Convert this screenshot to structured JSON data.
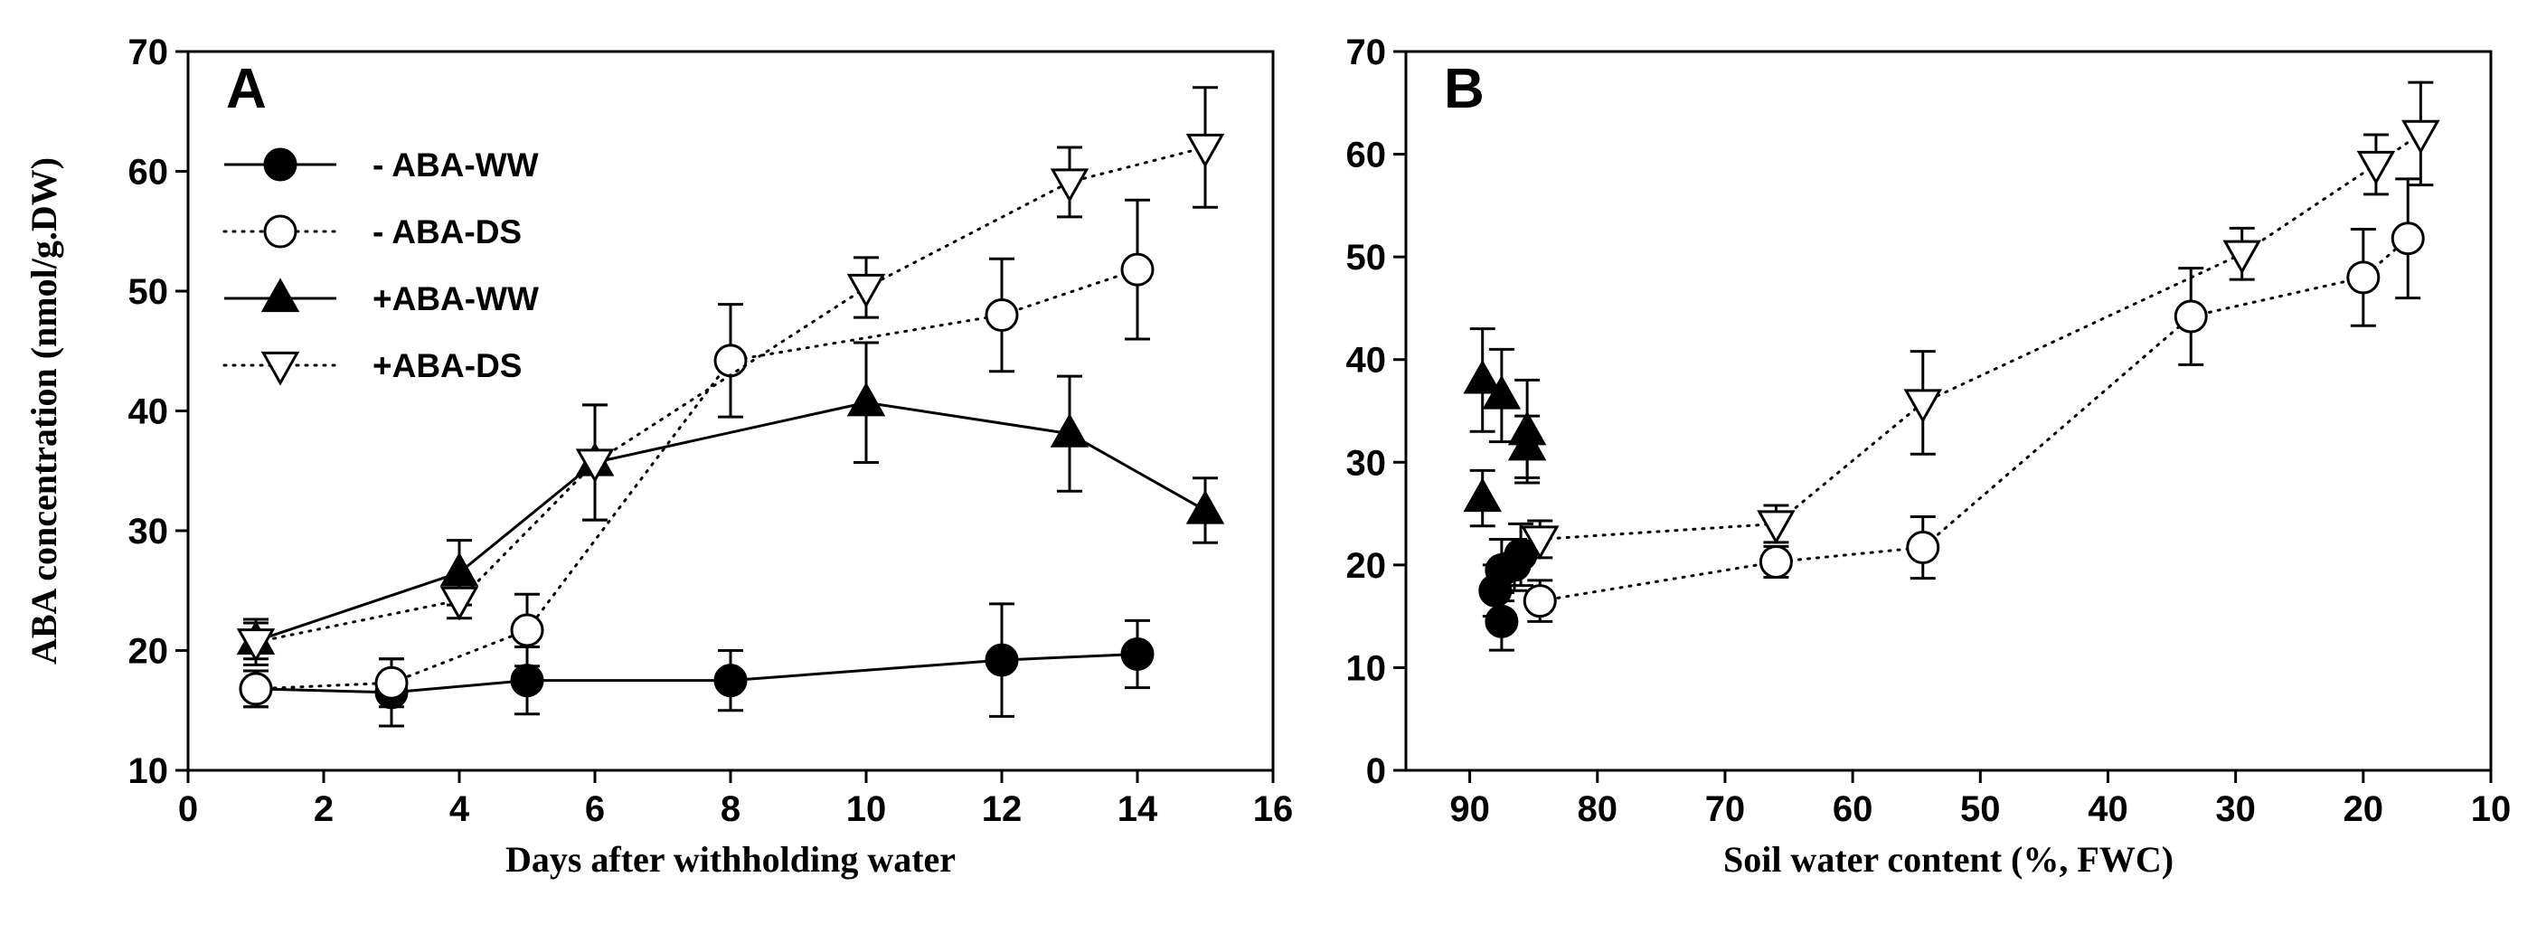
{
  "chart_data": [
    {
      "type": "line",
      "panel": "A",
      "xlabel": "Days after withholding water",
      "ylabel": "ABA concentration (nmol/g.DW)",
      "xlim": [
        0,
        16
      ],
      "ylim": [
        10,
        70
      ],
      "xticks": [
        0,
        2,
        4,
        6,
        8,
        10,
        12,
        14,
        16
      ],
      "yticks": [
        10,
        20,
        30,
        40,
        50,
        60,
        70
      ],
      "legend_position": "top-left",
      "series": [
        {
          "name": "- ABA-WW",
          "marker": "filled-circle",
          "line": "solid",
          "points": [
            {
              "x": 1,
              "y": 16.8,
              "err": 1.5
            },
            {
              "x": 3,
              "y": 16.5,
              "err": 2.8
            },
            {
              "x": 5,
              "y": 17.5,
              "err": 2.8
            },
            {
              "x": 8,
              "y": 17.5,
              "err": 2.5
            },
            {
              "x": 12,
              "y": 19.2,
              "err": 4.7
            },
            {
              "x": 14,
              "y": 19.7,
              "err": 2.8
            }
          ]
        },
        {
          "name": "- ABA-DS",
          "marker": "open-circle",
          "line": "dotted",
          "points": [
            {
              "x": 1,
              "y": 16.8,
              "err": 1.5
            },
            {
              "x": 3,
              "y": 17.3,
              "err": 2.0
            },
            {
              "x": 5,
              "y": 21.7,
              "err": 3.0
            },
            {
              "x": 8,
              "y": 44.2,
              "err": 4.7
            },
            {
              "x": 12,
              "y": 48.0,
              "err": 4.7
            },
            {
              "x": 14,
              "y": 51.8,
              "err": 5.8
            }
          ]
        },
        {
          "name": "+ABA-WW",
          "marker": "filled-triangle-up",
          "line": "solid",
          "points": [
            {
              "x": 1,
              "y": 20.8,
              "err": 1.5
            },
            {
              "x": 4,
              "y": 26.5,
              "err": 2.7
            },
            {
              "x": 6,
              "y": 35.7,
              "err": 4.8
            },
            {
              "x": 10,
              "y": 40.7,
              "err": 5.0
            },
            {
              "x": 13,
              "y": 38.1,
              "err": 4.8
            },
            {
              "x": 15,
              "y": 31.7,
              "err": 2.7
            }
          ]
        },
        {
          "name": "+ABA-DS",
          "marker": "open-triangle-down",
          "line": "dotted",
          "points": [
            {
              "x": 1,
              "y": 20.7,
              "err": 1.9
            },
            {
              "x": 4,
              "y": 24.2,
              "err": 1.5
            },
            {
              "x": 6,
              "y": 35.7,
              "err": 4.8
            },
            {
              "x": 10,
              "y": 50.3,
              "err": 2.5
            },
            {
              "x": 13,
              "y": 59.1,
              "err": 2.9
            },
            {
              "x": 15,
              "y": 62.0,
              "err": 5.0
            }
          ]
        }
      ]
    },
    {
      "type": "scatter",
      "panel": "B",
      "xlabel": "Soil water content (%, FWC)",
      "ylabel": "",
      "xlim": [
        95,
        10
      ],
      "ylim": [
        0,
        70
      ],
      "xticks": [
        90,
        80,
        70,
        60,
        50,
        40,
        30,
        20,
        10
      ],
      "yticks": [
        0,
        10,
        20,
        30,
        40,
        50,
        60,
        70
      ],
      "series": [
        {
          "name": "- ABA-WW",
          "marker": "filled-circle",
          "line": "none",
          "points": [
            {
              "x": 88,
              "y": 17.5,
              "err": 2.5
            },
            {
              "x": 87.5,
              "y": 14.5,
              "err": 2.8
            },
            {
              "x": 87.5,
              "y": 19.5,
              "err": 3.0
            },
            {
              "x": 86.5,
              "y": 20.0,
              "err": 2.5
            },
            {
              "x": 86,
              "y": 21.0,
              "err": 3.0
            }
          ]
        },
        {
          "name": "- ABA-DS",
          "marker": "open-circle",
          "line": "dotted",
          "points": [
            {
              "x": 84.5,
              "y": 16.5,
              "err": 2.0
            },
            {
              "x": 66,
              "y": 20.3,
              "err": 1.5
            },
            {
              "x": 54.5,
              "y": 21.7,
              "err": 3.0
            },
            {
              "x": 33.5,
              "y": 44.2,
              "err": 4.7
            },
            {
              "x": 20,
              "y": 48.0,
              "err": 4.7
            },
            {
              "x": 16.5,
              "y": 51.8,
              "err": 5.8
            }
          ]
        },
        {
          "name": "+ABA-WW",
          "marker": "filled-triangle-up",
          "line": "none",
          "points": [
            {
              "x": 89,
              "y": 38.0,
              "err": 5.0
            },
            {
              "x": 87.5,
              "y": 36.5,
              "err": 4.5
            },
            {
              "x": 85.5,
              "y": 33.0,
              "err": 5.0
            },
            {
              "x": 85.5,
              "y": 31.5,
              "err": 3.0
            },
            {
              "x": 89,
              "y": 26.5,
              "err": 2.7
            }
          ]
        },
        {
          "name": "+ABA-DS",
          "marker": "open-triangle-down",
          "line": "dotted",
          "points": [
            {
              "x": 84.5,
              "y": 22.5,
              "err": 1.8
            },
            {
              "x": 66,
              "y": 24.0,
              "err": 1.8
            },
            {
              "x": 54.5,
              "y": 35.8,
              "err": 5.0
            },
            {
              "x": 29.5,
              "y": 50.3,
              "err": 2.5
            },
            {
              "x": 19,
              "y": 59.0,
              "err": 2.9
            },
            {
              "x": 15.5,
              "y": 62.0,
              "err": 5.0
            }
          ]
        }
      ]
    }
  ]
}
